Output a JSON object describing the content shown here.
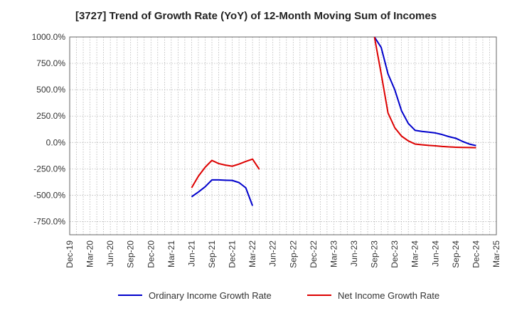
{
  "chart_data": {
    "type": "line",
    "title": "[3727]  Trend of Growth Rate (YoY) of 12-Month Moving Sum of Incomes",
    "xlabel": "",
    "ylabel": "",
    "ylim": [
      -875,
      1000
    ],
    "y_ticks": [
      1000,
      750,
      500,
      250,
      0,
      -250,
      -500,
      -750
    ],
    "y_tick_labels": [
      "1000.0%",
      "750.0%",
      "500.0%",
      "250.0%",
      "0.0%",
      "-250.0%",
      "-500.0%",
      "-750.0%"
    ],
    "x_tick_labels": [
      "Dec-19",
      "Mar-20",
      "Jun-20",
      "Sep-20",
      "Dec-20",
      "Mar-21",
      "Jun-21",
      "Sep-21",
      "Dec-21",
      "Mar-22",
      "Jun-22",
      "Sep-22",
      "Dec-22",
      "Mar-23",
      "Jun-23",
      "Sep-23",
      "Dec-23",
      "Mar-24",
      "Jun-24",
      "Sep-24",
      "Dec-24",
      "Mar-25"
    ],
    "x_start": "2019-12",
    "x_end": "2025-03",
    "grid": true,
    "legend_position": "bottom",
    "series": [
      {
        "name": "Ordinary Income Growth Rate",
        "color": "#0000cc",
        "points": [
          {
            "x": "2021-06",
            "y": -515
          },
          {
            "x": "2021-07",
            "y": -470
          },
          {
            "x": "2021-08",
            "y": -420
          },
          {
            "x": "2021-09",
            "y": -355
          },
          {
            "x": "2021-10",
            "y": -355
          },
          {
            "x": "2021-11",
            "y": -358
          },
          {
            "x": "2021-12",
            "y": -360
          },
          {
            "x": "2022-01",
            "y": -380
          },
          {
            "x": "2022-02",
            "y": -430
          },
          {
            "x": "2022-03",
            "y": -600
          },
          {
            "x": "2023-09",
            "y": 1000
          },
          {
            "x": "2023-10",
            "y": 900
          },
          {
            "x": "2023-11",
            "y": 650
          },
          {
            "x": "2023-12",
            "y": 500
          },
          {
            "x": "2024-01",
            "y": 300
          },
          {
            "x": "2024-02",
            "y": 180
          },
          {
            "x": "2024-03",
            "y": 115
          },
          {
            "x": "2024-04",
            "y": 105
          },
          {
            "x": "2024-05",
            "y": 98
          },
          {
            "x": "2024-06",
            "y": 90
          },
          {
            "x": "2024-07",
            "y": 75
          },
          {
            "x": "2024-08",
            "y": 55
          },
          {
            "x": "2024-09",
            "y": 40
          },
          {
            "x": "2024-10",
            "y": 10
          },
          {
            "x": "2024-11",
            "y": -15
          },
          {
            "x": "2024-12",
            "y": -30
          }
        ]
      },
      {
        "name": "Net Income Growth Rate",
        "color": "#dd0000",
        "points": [
          {
            "x": "2021-06",
            "y": -430
          },
          {
            "x": "2021-07",
            "y": -320
          },
          {
            "x": "2021-08",
            "y": -235
          },
          {
            "x": "2021-09",
            "y": -170
          },
          {
            "x": "2021-10",
            "y": -200
          },
          {
            "x": "2021-11",
            "y": -215
          },
          {
            "x": "2021-12",
            "y": -225
          },
          {
            "x": "2022-01",
            "y": -205
          },
          {
            "x": "2022-02",
            "y": -180
          },
          {
            "x": "2022-03",
            "y": -158
          },
          {
            "x": "2022-04",
            "y": -255
          },
          {
            "x": "2023-09",
            "y": 1000
          },
          {
            "x": "2023-10",
            "y": 650
          },
          {
            "x": "2023-11",
            "y": 280
          },
          {
            "x": "2023-12",
            "y": 140
          },
          {
            "x": "2024-01",
            "y": 60
          },
          {
            "x": "2024-02",
            "y": 15
          },
          {
            "x": "2024-03",
            "y": -15
          },
          {
            "x": "2024-04",
            "y": -22
          },
          {
            "x": "2024-05",
            "y": -28
          },
          {
            "x": "2024-06",
            "y": -32
          },
          {
            "x": "2024-07",
            "y": -38
          },
          {
            "x": "2024-08",
            "y": -42
          },
          {
            "x": "2024-09",
            "y": -45
          },
          {
            "x": "2024-10",
            "y": -47
          },
          {
            "x": "2024-11",
            "y": -48
          },
          {
            "x": "2024-12",
            "y": -50
          }
        ]
      }
    ]
  }
}
